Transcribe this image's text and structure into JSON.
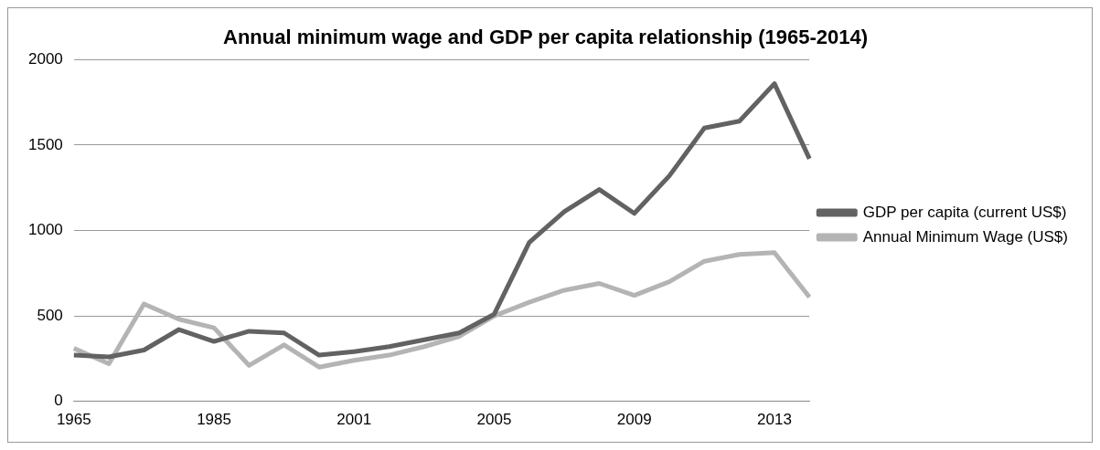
{
  "chart_data": {
    "type": "line",
    "title": "Annual minimum wage and GDP per capita relationship (1965-2014)",
    "categories": [
      "1965",
      null,
      null,
      null,
      "1985",
      null,
      null,
      null,
      "2001",
      null,
      null,
      null,
      "2005",
      null,
      null,
      null,
      "2009",
      null,
      null,
      null,
      "2013",
      null
    ],
    "series": [
      {
        "name": "GDP per capita (current US$)",
        "color": "#626262",
        "values": [
          270,
          260,
          300,
          420,
          350,
          410,
          400,
          270,
          290,
          320,
          360,
          400,
          510,
          930,
          1110,
          1240,
          1100,
          1320,
          1600,
          1640,
          1860,
          1420
        ]
      },
      {
        "name": "Annual Minimum Wage (US$)",
        "color": "#b4b4b4",
        "values": [
          310,
          220,
          570,
          480,
          430,
          210,
          330,
          200,
          240,
          270,
          320,
          380,
          500,
          580,
          650,
          690,
          620,
          700,
          820,
          860,
          870,
          610
        ]
      }
    ],
    "ylim": [
      0,
      2000
    ],
    "yticks": [
      0,
      500,
      1000,
      1500,
      2000
    ],
    "grid": "y",
    "legend": "right",
    "marker": "none",
    "line_style": "solid"
  }
}
